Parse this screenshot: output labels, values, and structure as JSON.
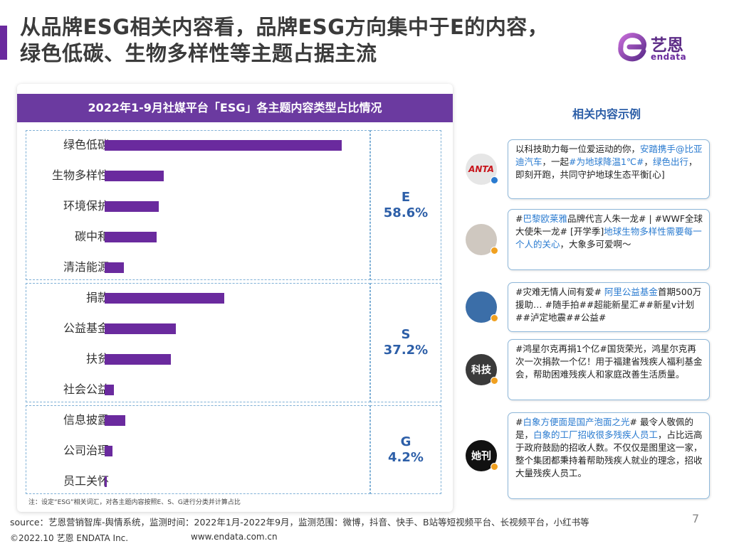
{
  "header": {
    "title_line1": "从品牌ESG相关内容看，品牌ESG方向集中于E的内容，",
    "title_line2": "绿色低碳、生物多样性等主题占据主流"
  },
  "logo": {
    "text": "艺恩",
    "sub": "endata"
  },
  "chart_data": {
    "type": "bar",
    "orientation": "horizontal",
    "title": "2022年1-9月社媒平台「ESG」各主题内容类型占比情况",
    "categories": [
      "绿色低碳",
      "生物多样性",
      "环境保护",
      "碳中和",
      "清洁能源",
      "捐款",
      "公益基金",
      "扶贫",
      "社会公益",
      "信息披露",
      "公司治理",
      "员工关怀"
    ],
    "values": [
      25.0,
      6.2,
      5.7,
      5.5,
      2.0,
      12.6,
      7.5,
      7.0,
      1.0,
      2.2,
      0.8,
      0.2
    ],
    "xlim": [
      0,
      30
    ],
    "grid": false,
    "groups": [
      {
        "label": "E",
        "percent": "58.6%",
        "categories": [
          "绿色低碳",
          "生物多样性",
          "环境保护",
          "碳中和",
          "清洁能源"
        ]
      },
      {
        "label": "S",
        "percent": "37.2%",
        "categories": [
          "捐款",
          "公益基金",
          "扶贫",
          "社会公益"
        ]
      },
      {
        "label": "G",
        "percent": "4.2%",
        "categories": [
          "信息披露",
          "公司治理",
          "员工关怀"
        ]
      }
    ],
    "note": "注：设定“ESG”相关词汇，对各主题内容按照E、S、G进行分类并计算占比",
    "bar_color": "#6a2a9e"
  },
  "related": {
    "title": "相关内容示例",
    "posts": [
      {
        "avatar": "ANTA",
        "segments": [
          {
            "t": "以科技助力每一位爱运动的你，"
          },
          {
            "t": "安踏携手@比亚迪汽车",
            "hl": true
          },
          {
            "t": "，一起"
          },
          {
            "t": "#为地球降温1℃#",
            "hl": true
          },
          {
            "t": "，"
          },
          {
            "t": "绿色出行",
            "hl": true
          },
          {
            "t": "，即刻开跑，共同守护地球生态平衡[心]"
          }
        ]
      },
      {
        "avatar": "",
        "segments": [
          {
            "t": "#"
          },
          {
            "t": "巴黎欧莱雅",
            "hl": true
          },
          {
            "t": "品牌代言人朱一龙# | #WWF全球大使朱一龙# [开学季]"
          },
          {
            "t": "地球生物多样性需要每一个人的关心",
            "hl": true
          },
          {
            "t": "，大象多可爱啊～"
          }
        ]
      },
      {
        "avatar": "",
        "segments": [
          {
            "t": "#灾难无情人间有爱# "
          },
          {
            "t": "阿里公益基金",
            "hl": true
          },
          {
            "t": "首期500万援助… #随手拍##超能新星汇##新星v计划##泸定地震##公益#"
          }
        ]
      },
      {
        "avatar": "科技",
        "segments": [
          {
            "t": "#鸿星尔克再捐1个亿#国货荣光，鸿星尔克再次一次捐款一个亿！用于福建省残疾人福利基金会，帮助困难残疾人和家庭改善生活质量。"
          }
        ]
      },
      {
        "avatar": "她刊",
        "segments": [
          {
            "t": "#"
          },
          {
            "t": "白象方便面是国产泡面之光",
            "hl": true
          },
          {
            "t": "# 最令人敬佩的是，"
          },
          {
            "t": "白象的工厂招收很多残疾人员工",
            "hl": true
          },
          {
            "t": "，占比远高于政府鼓励的招收人数。不仅仅是图里这一家，整个集团都秉持着帮助残疾人就业的理念，招收大量残疾人员工。"
          }
        ]
      }
    ]
  },
  "footer": {
    "source": "source：艺恩营销智库-舆情系统，监测时间：2022年1月-2022年9月，监测范围：微博，抖音、快手、B站等短视频平台、长视频平台，小红书等",
    "page_number": "7",
    "copyright": "©2022.10 艺恩 ENDATA Inc.",
    "website": "www.endata.com.cn"
  }
}
